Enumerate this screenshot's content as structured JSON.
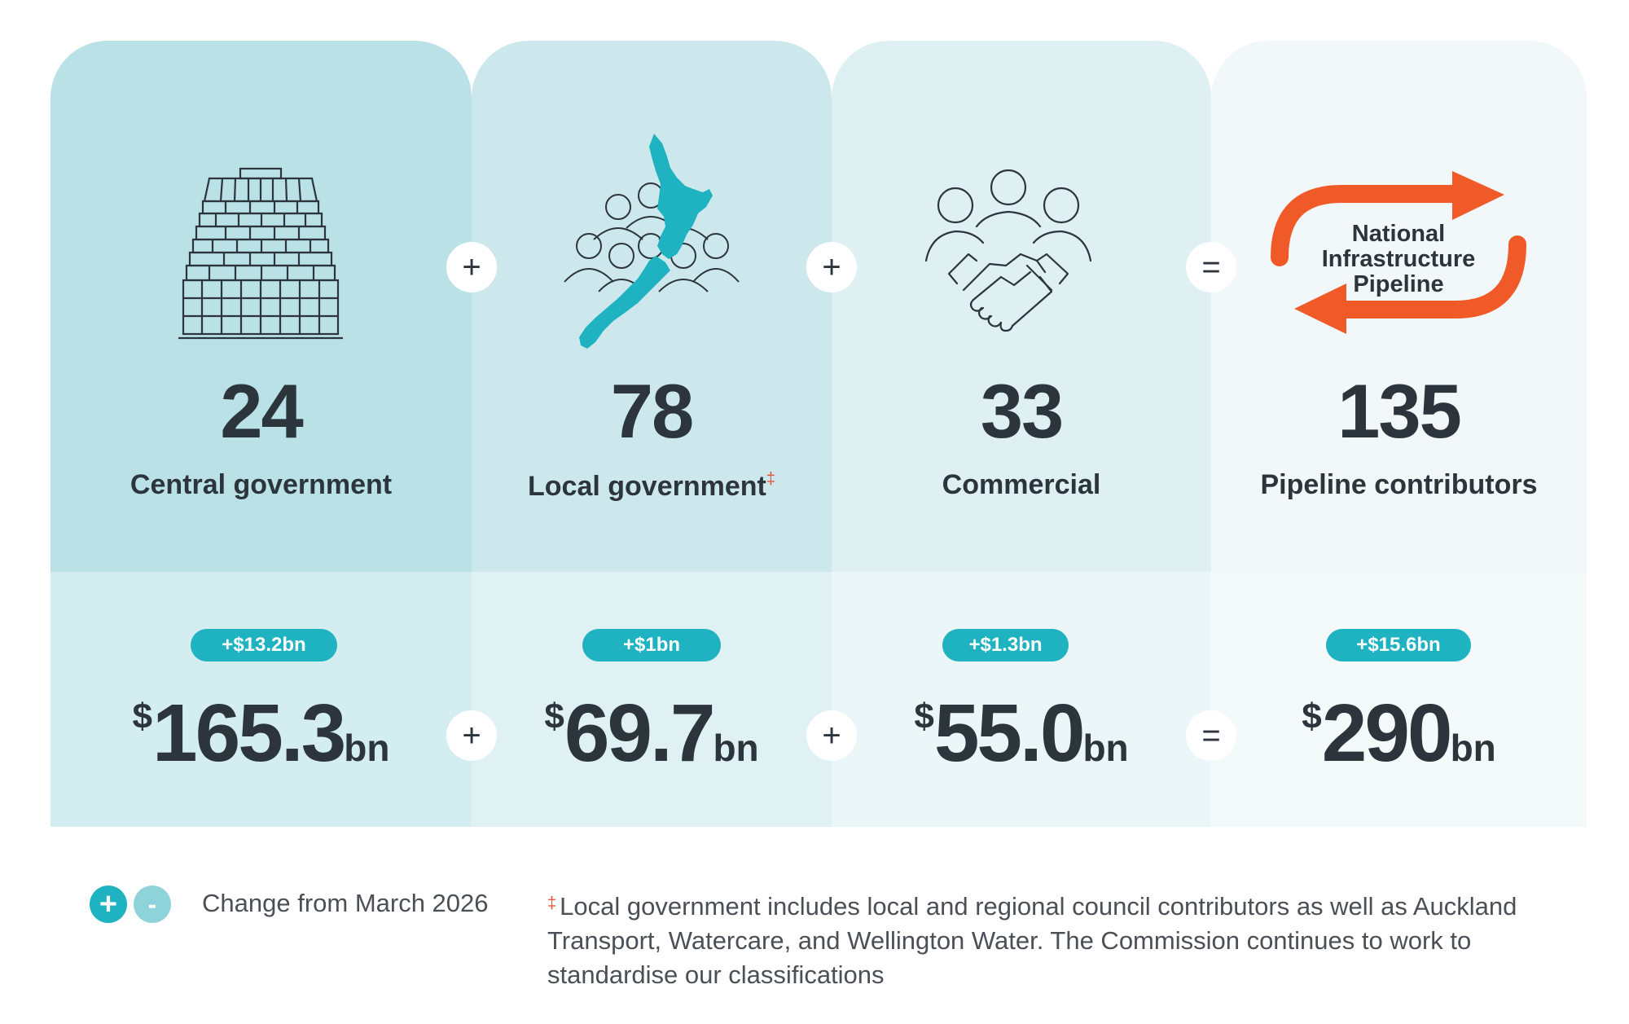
{
  "columns": [
    {
      "count": "24",
      "label": "Central government",
      "icon": "parliament-beehive-icon",
      "change": "+$13.2bn",
      "currency": "$",
      "amount": "165.3",
      "unit": "bn"
    },
    {
      "count": "78",
      "label": "Local government",
      "label_mark": "‡",
      "icon": "nz-map-people-icon",
      "change": "+$1bn",
      "currency": "$",
      "amount": "69.7",
      "unit": "bn"
    },
    {
      "count": "33",
      "label": "Commercial",
      "icon": "handshake-people-icon",
      "change": "+$1.3bn",
      "currency": "$",
      "amount": "55.0",
      "unit": "bn"
    },
    {
      "count": "135",
      "label": "Pipeline contributors",
      "icon": "pipeline-cycle-icon",
      "icon_text": [
        "National",
        "Infrastructure",
        "Pipeline"
      ],
      "change": "+$15.6bn",
      "currency": "$",
      "amount": "290",
      "unit": "bn"
    }
  ],
  "operators": {
    "plus": "+",
    "equals": "="
  },
  "legend": {
    "plus_symbol": "+",
    "minus_symbol": "-",
    "text": "Change from March 2026"
  },
  "footnote": {
    "mark": "‡",
    "text": "Local government includes local and regional council contributors as well as Auckland Transport, Watercare, and Wellington Water. The Commission continues to work to standardise our classifications"
  },
  "colors": {
    "teal": "#1fb2c0",
    "orange": "#f05a28",
    "dark_text": "#2c343c"
  }
}
